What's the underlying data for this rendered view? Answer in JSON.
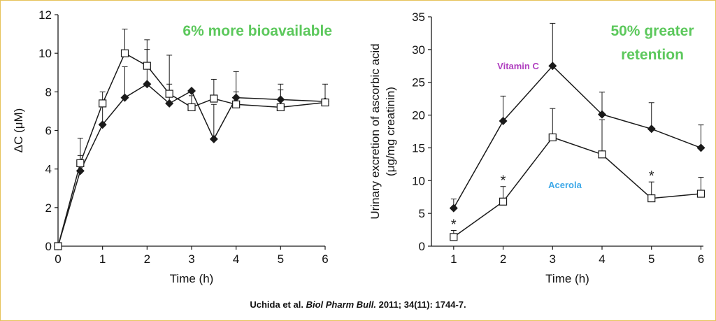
{
  "colors": {
    "border": "#e6c25a",
    "highlight_green": "#5cc85c",
    "vitamin_c_label": "#b040c0",
    "acerola_label": "#3da8e8",
    "series_line": "#1a1a1a"
  },
  "citation": {
    "authors": "Uchida et al.",
    "journal": "Biol Pharm Bull.",
    "details": "2011; 34(11): 1744-7."
  },
  "chart_data": [
    {
      "type": "line",
      "title": "6% more bioavailable",
      "xlabel": "Time (h)",
      "ylabel": "ΔC (μM)",
      "xlim": [
        0,
        6
      ],
      "ylim": [
        0,
        12
      ],
      "xticks": [
        "0",
        "1",
        "2",
        "3",
        "4",
        "5",
        "6"
      ],
      "yticks": [
        "0",
        "2",
        "4",
        "6",
        "8",
        "10",
        "12"
      ],
      "grid": false,
      "series": [
        {
          "marker": "filled-diamond",
          "x": [
            0,
            0.5,
            1,
            1.5,
            2,
            2.5,
            3,
            3.5,
            4,
            5,
            6
          ],
          "y": [
            0,
            3.9,
            6.3,
            7.7,
            8.4,
            7.4,
            8.05,
            5.55,
            7.7,
            7.6,
            7.5
          ],
          "err": [
            0,
            1.7,
            1.2,
            1.6,
            1.8,
            2.5,
            0,
            1.8,
            0.3,
            0.5,
            0
          ]
        },
        {
          "marker": "open-square",
          "x": [
            0,
            0.5,
            1,
            1.5,
            2,
            2.5,
            3,
            3.5,
            4,
            5,
            6
          ],
          "y": [
            0,
            4.3,
            7.4,
            10.0,
            9.35,
            7.9,
            7.2,
            7.65,
            7.35,
            7.2,
            7.45
          ],
          "err": [
            0,
            0.4,
            0.6,
            1.25,
            1.35,
            0.5,
            0.6,
            1.0,
            1.7,
            1.2,
            0.95
          ]
        }
      ]
    },
    {
      "type": "line",
      "title": "50% greater retention",
      "xlabel": "Time (h)",
      "ylabel_line1": "Urinary excretion of ascorbic acid",
      "ylabel_line2": "(μg/mg creatinin)",
      "xlim": [
        0.55,
        6.05
      ],
      "ylim": [
        0,
        35
      ],
      "xticks": [
        "1",
        "2",
        "3",
        "4",
        "5",
        "6"
      ],
      "yticks": [
        "0",
        "5",
        "10",
        "15",
        "20",
        "25",
        "30",
        "35"
      ],
      "grid": false,
      "series": [
        {
          "name": "Vitamin C",
          "marker": "filled-diamond",
          "x": [
            1,
            2,
            3,
            4,
            5,
            6
          ],
          "y": [
            5.8,
            19.1,
            27.5,
            20.1,
            17.9,
            15.0
          ],
          "err": [
            1.4,
            3.8,
            6.5,
            3.4,
            4.0,
            3.5
          ]
        },
        {
          "name": "Acerola",
          "marker": "open-square",
          "x": [
            1,
            2,
            3,
            4,
            5,
            6
          ],
          "y": [
            1.4,
            6.8,
            16.6,
            14.0,
            7.3,
            8.0
          ],
          "err": [
            1.0,
            2.3,
            4.4,
            5.3,
            2.5,
            2.5
          ],
          "significance": [
            "*",
            "*",
            "",
            "",
            "*",
            ""
          ]
        }
      ]
    }
  ]
}
